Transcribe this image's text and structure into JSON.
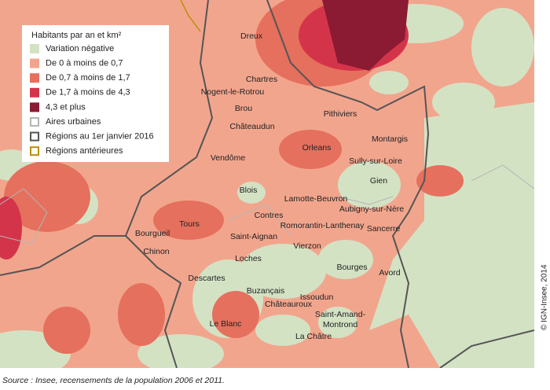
{
  "legend": {
    "title": "Habitants par an et km²",
    "items": [
      {
        "label": "Variation négative",
        "color": "#d4e2c4",
        "kind": "fill"
      },
      {
        "label": "De 0 à moins de 0,7",
        "color": "#f2a58d",
        "kind": "fill"
      },
      {
        "label": "De 0,7 à moins de 1,7",
        "color": "#e5705d",
        "kind": "fill"
      },
      {
        "label": "De 1,7 à moins de 4,3",
        "color": "#d4344a",
        "kind": "fill"
      },
      {
        "label": "4,3 et plus",
        "color": "#8b1a33",
        "kind": "fill"
      },
      {
        "label": "Aires urbaines",
        "color": "#b5b5b5",
        "kind": "outline"
      },
      {
        "label": "Régions au 1er janvier 2016",
        "color": "#555555",
        "kind": "outline"
      },
      {
        "label": "Régions antérieures",
        "color": "#b8900a",
        "kind": "outline"
      }
    ]
  },
  "cities": [
    {
      "label": "Dreux"
    },
    {
      "label": "Chartres"
    },
    {
      "label": "Nogent-le-Rotrou"
    },
    {
      "label": "Brou"
    },
    {
      "label": "Pithiviers"
    },
    {
      "label": "Châteaudun"
    },
    {
      "label": "Orleans"
    },
    {
      "label": "Montargis"
    },
    {
      "label": "Sully-sur-Loire"
    },
    {
      "label": "Vendôme"
    },
    {
      "label": "Gien"
    },
    {
      "label": "Blois"
    },
    {
      "label": "Lamotte-Beuvron"
    },
    {
      "label": "Aubigny-sur-Nère"
    },
    {
      "label": "Contres"
    },
    {
      "label": "Tours"
    },
    {
      "label": "Romorantin-Lanthenay"
    },
    {
      "label": "Sancerre"
    },
    {
      "label": "Bourgueil"
    },
    {
      "label": "Saint-Aignan"
    },
    {
      "label": "Chinon"
    },
    {
      "label": "Vierzon"
    },
    {
      "label": "Loches"
    },
    {
      "label": "Bourges"
    },
    {
      "label": "Avord"
    },
    {
      "label": "Descartes"
    },
    {
      "label": "Issoudun"
    },
    {
      "label": "Buzançais"
    },
    {
      "label": "Châteauroux"
    },
    {
      "label": "Saint-Amand-"
    },
    {
      "label": "Montrond"
    },
    {
      "label": "Le Blanc"
    },
    {
      "label": "La Châtre"
    }
  ],
  "source": "Source : Insee, recensements de la population 2006 et 2011.",
  "copyright": "© IGN-Insee, 2014"
}
